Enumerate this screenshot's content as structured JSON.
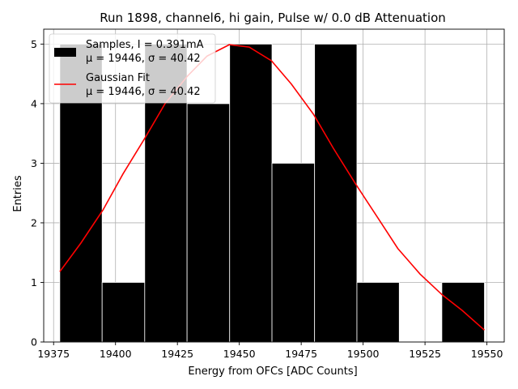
{
  "chart_data": {
    "type": "bar",
    "title": "Run 1898, channel6, hi gain, Pulse w/ 0.0 dB Attenuation",
    "xlabel": "Energy from OFCs [ADC Counts]",
    "ylabel": "Entries",
    "xlim": [
      19371,
      19557
    ],
    "ylim": [
      0,
      5.25
    ],
    "grid": true,
    "legend_placement": "top-left",
    "xticks": [
      19375,
      19400,
      19425,
      19450,
      19475,
      19500,
      19525,
      19550
    ],
    "yticks": [
      0,
      1,
      2,
      3,
      4,
      5
    ],
    "histogram": {
      "name": "Samples, I = 0.391mA",
      "stats": "μ = 19446, σ = 40.42",
      "color": "#000000",
      "bins": [
        {
          "x0": 19377.5,
          "x1": 19394.6,
          "count": 5
        },
        {
          "x0": 19394.6,
          "x1": 19411.8,
          "count": 1
        },
        {
          "x0": 19411.8,
          "x1": 19428.9,
          "count": 5
        },
        {
          "x0": 19428.9,
          "x1": 19446.1,
          "count": 4
        },
        {
          "x0": 19446.1,
          "x1": 19463.2,
          "count": 5
        },
        {
          "x0": 19463.2,
          "x1": 19480.4,
          "count": 3
        },
        {
          "x0": 19480.4,
          "x1": 19497.5,
          "count": 5
        },
        {
          "x0": 19497.5,
          "x1": 19514.6,
          "count": 1
        },
        {
          "x0": 19514.6,
          "x1": 19531.8,
          "count": 0
        },
        {
          "x0": 19531.8,
          "x1": 19549.0,
          "count": 1
        }
      ]
    },
    "fit": {
      "name": "Gaussian Fit",
      "stats": "μ = 19446, σ = 40.42",
      "color": "#ff0000",
      "x": [
        19377.5,
        19386,
        19395,
        19403,
        19412,
        19420,
        19429,
        19437,
        19446,
        19454,
        19463,
        19471,
        19480,
        19488,
        19497,
        19506,
        19514,
        19523,
        19532,
        19540,
        19549
      ],
      "y": [
        1.18,
        1.66,
        2.22,
        2.82,
        3.43,
        4.0,
        4.46,
        4.8,
        4.99,
        4.95,
        4.72,
        4.33,
        3.82,
        3.25,
        2.65,
        2.08,
        1.57,
        1.14,
        0.79,
        0.53,
        0.2
      ]
    }
  }
}
